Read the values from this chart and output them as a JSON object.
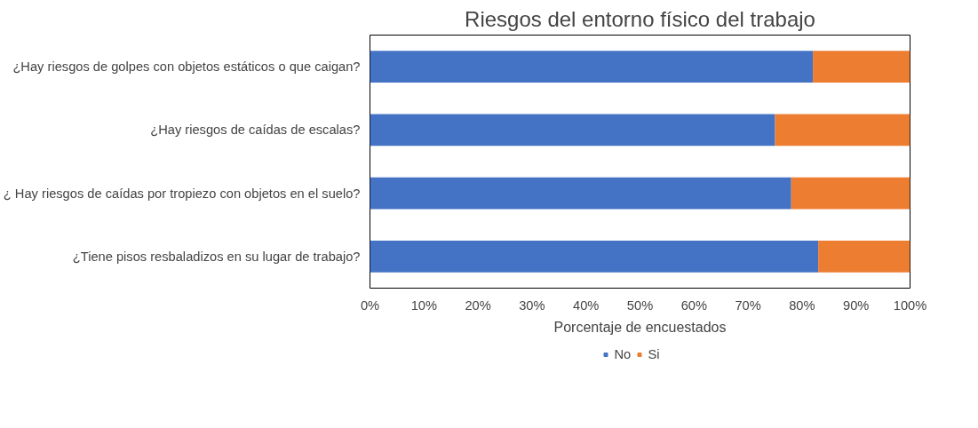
{
  "chart_data": {
    "type": "bar",
    "orientation": "horizontal",
    "stacked": true,
    "title": "Riesgos del entorno físico del trabajo",
    "xlabel": "Porcentaje de encuestados",
    "categories": [
      "¿Hay riesgos de golpes con objetos estáticos o que caigan?",
      "¿Hay riesgos de caídas de escalas?",
      "¿ Hay riesgos de caídas por tropiezo con objetos en el suelo?",
      "¿Tiene pisos resbaladizos en su lugar de trabajo?"
    ],
    "series": [
      {
        "name": "No",
        "color": "#4472c4",
        "values": [
          82,
          75,
          78,
          83
        ]
      },
      {
        "name": "Si",
        "color": "#ed7d31",
        "values": [
          18,
          25,
          22,
          17
        ]
      }
    ],
    "xlim": [
      0,
      100
    ],
    "xticks": [
      {
        "value": 0,
        "label": "0%"
      },
      {
        "value": 10,
        "label": "10%"
      },
      {
        "value": 20,
        "label": "20%"
      },
      {
        "value": 30,
        "label": "30%"
      },
      {
        "value": 40,
        "label": "40%"
      },
      {
        "value": 50,
        "label": "50%"
      },
      {
        "value": 60,
        "label": "60%"
      },
      {
        "value": 70,
        "label": "70%"
      },
      {
        "value": 80,
        "label": "80%"
      },
      {
        "value": 90,
        "label": "90%"
      },
      {
        "value": 100,
        "label": "100%"
      }
    ],
    "grid": false,
    "legend": "bottom"
  }
}
